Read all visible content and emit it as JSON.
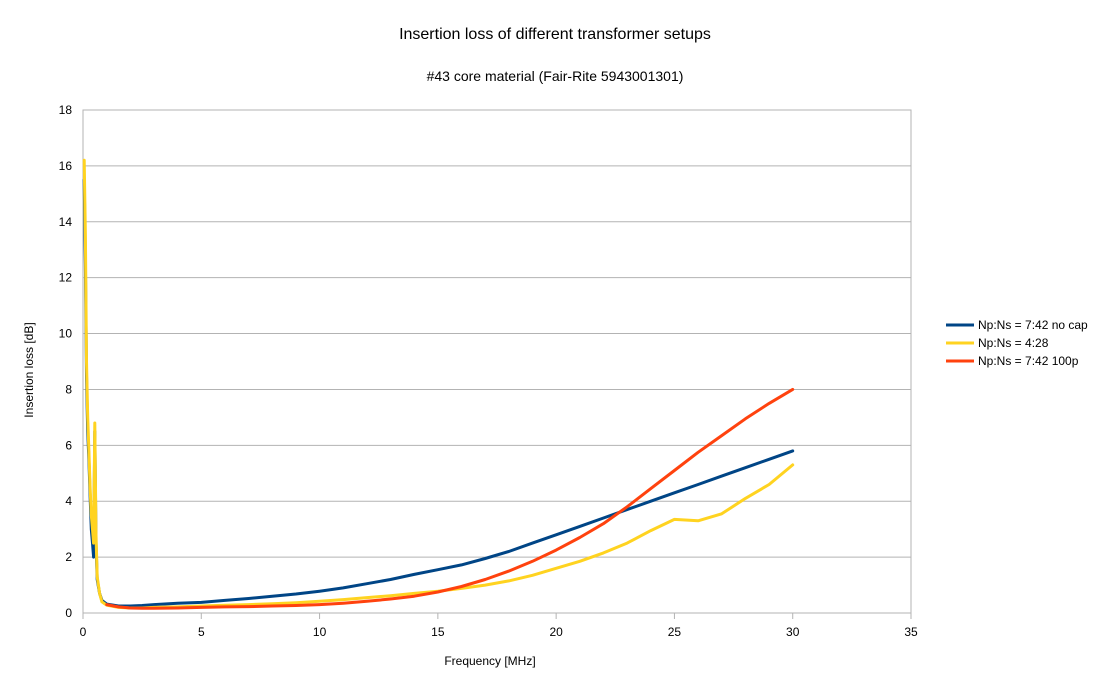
{
  "chart_data": {
    "type": "line",
    "title": "Insertion loss of different transformer setups",
    "subtitle": "#43 core material (Fair-Rite 5943001301)",
    "xlabel": "Frequency [MHz]",
    "ylabel": "Insertion loss [dB]",
    "xlim": [
      0,
      35
    ],
    "ylim": [
      0,
      18
    ],
    "xticks": [
      0,
      5,
      10,
      15,
      20,
      25,
      30,
      35
    ],
    "yticks": [
      0,
      2,
      4,
      6,
      8,
      10,
      12,
      14,
      16,
      18
    ],
    "grid": "horizontal",
    "legend_position": "right",
    "series": [
      {
        "name": "Np:Ns = 7:42 no cap",
        "color": "#004586",
        "x": [
          0.05,
          0.1,
          0.15,
          0.2,
          0.25,
          0.3,
          0.35,
          0.4,
          0.45,
          0.5,
          0.55,
          0.6,
          0.7,
          0.8,
          1,
          1.5,
          2,
          2.5,
          3,
          4,
          5,
          6,
          7,
          8,
          9,
          10,
          11,
          12,
          13,
          14,
          15,
          16,
          17,
          18,
          19,
          20,
          21,
          22,
          23,
          24,
          25,
          26,
          27,
          28,
          29,
          30
        ],
        "y": [
          15.5,
          12.5,
          8.5,
          6.5,
          5.5,
          4.2,
          3.0,
          2.5,
          2.0,
          6.5,
          2.5,
          1.2,
          0.7,
          0.45,
          0.32,
          0.25,
          0.25,
          0.27,
          0.3,
          0.35,
          0.38,
          0.45,
          0.52,
          0.6,
          0.68,
          0.78,
          0.9,
          1.05,
          1.2,
          1.38,
          1.55,
          1.72,
          1.95,
          2.2,
          2.5,
          2.8,
          3.1,
          3.4,
          3.7,
          4.0,
          4.3,
          4.6,
          4.9,
          5.2,
          5.5,
          5.8
        ]
      },
      {
        "name": "Np:Ns = 4:28",
        "color": "#ffd320",
        "x": [
          0.05,
          0.1,
          0.15,
          0.2,
          0.25,
          0.3,
          0.35,
          0.4,
          0.45,
          0.5,
          0.55,
          0.6,
          0.7,
          0.8,
          1,
          1.5,
          2,
          2.5,
          3,
          4,
          5,
          6,
          7,
          8,
          9,
          10,
          11,
          12,
          13,
          14,
          15,
          16,
          17,
          18,
          19,
          20,
          21,
          22,
          23,
          24,
          25,
          26,
          27,
          28,
          29,
          30
        ],
        "y": [
          16.2,
          13.5,
          9.0,
          7.0,
          5.8,
          4.5,
          3.5,
          3.0,
          2.5,
          6.8,
          2.8,
          1.3,
          0.7,
          0.4,
          0.28,
          0.2,
          0.18,
          0.18,
          0.2,
          0.22,
          0.25,
          0.28,
          0.3,
          0.33,
          0.37,
          0.42,
          0.48,
          0.55,
          0.62,
          0.7,
          0.78,
          0.88,
          1.0,
          1.15,
          1.35,
          1.6,
          1.85,
          2.15,
          2.5,
          2.95,
          3.35,
          3.3,
          3.55,
          4.1,
          4.6,
          5.3
        ]
      },
      {
        "name": "Np:Ns = 7:42 100p",
        "color": "#ff420e",
        "x": [
          1,
          1.5,
          2,
          2.5,
          3,
          4,
          5,
          6,
          7,
          8,
          9,
          10,
          11,
          12,
          13,
          14,
          15,
          16,
          17,
          18,
          19,
          20,
          21,
          22,
          23,
          24,
          25,
          26,
          27,
          28,
          29,
          30
        ],
        "y": [
          0.3,
          0.22,
          0.18,
          0.17,
          0.17,
          0.18,
          0.2,
          0.22,
          0.23,
          0.25,
          0.27,
          0.3,
          0.35,
          0.42,
          0.5,
          0.6,
          0.75,
          0.95,
          1.2,
          1.5,
          1.85,
          2.25,
          2.7,
          3.2,
          3.8,
          4.45,
          5.1,
          5.75,
          6.35,
          6.95,
          7.5,
          8.0
        ]
      }
    ]
  }
}
